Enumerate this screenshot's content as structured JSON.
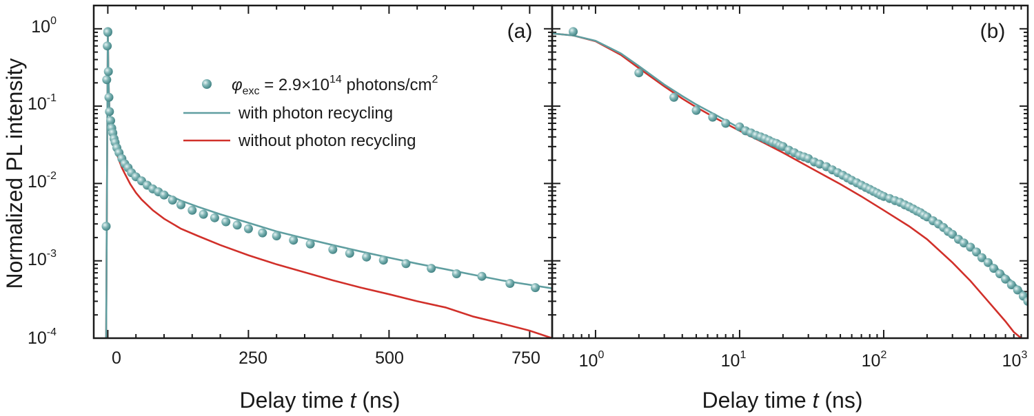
{
  "colors": {
    "teal": "#5f9ea0",
    "red": "#d1302a",
    "frame": "#1a1a1a"
  },
  "y_axis": {
    "label": "Normalized PL intensity",
    "ticks": [
      {
        "base": "10",
        "exp": "0",
        "value": 1
      },
      {
        "base": "10",
        "exp": "-1",
        "value": 0.1
      },
      {
        "base": "10",
        "exp": "-2",
        "value": 0.01
      },
      {
        "base": "10",
        "exp": "-3",
        "value": 0.001
      },
      {
        "base": "10",
        "exp": "-4",
        "value": 0.0001
      }
    ]
  },
  "legend": {
    "marker_symbol": "φ",
    "marker_sub": "exc",
    "marker_text": " = 2.9×10",
    "marker_exp": "14",
    "marker_unit": " photons/cm",
    "marker_unit_exp": "2",
    "line1": "with photon recycling",
    "line2": "without photon recycling"
  },
  "panel_a": {
    "label": "(a)",
    "xlabel_prefix": "Delay time ",
    "xlabel_var": "t",
    "xlabel_suffix": " (ns)",
    "x_ticks": [
      "0",
      "250",
      "500",
      "750"
    ]
  },
  "panel_b": {
    "label": "(b)",
    "xlabel_prefix": "Delay time ",
    "xlabel_var": "t",
    "xlabel_suffix": " (ns)",
    "x_ticks": [
      {
        "base": "10",
        "exp": "0"
      },
      {
        "base": "10",
        "exp": "1"
      },
      {
        "base": "10",
        "exp": "2"
      },
      {
        "base": "10",
        "exp": "3"
      }
    ]
  },
  "chart_data": [
    {
      "type": "line",
      "panel": "(a)",
      "xlabel": "Delay time t (ns)",
      "ylabel": "Normalized PL intensity",
      "xlim": [
        -25,
        790
      ],
      "ylim": [
        0.0001,
        2
      ],
      "yscale": "log",
      "series": [
        {
          "name": "φexc = 2.9×10^14 photons/cm^2",
          "kind": "scatter",
          "x": [
            -3,
            -2,
            -1,
            0,
            0,
            1,
            2,
            3,
            5,
            7,
            9,
            11,
            13,
            16,
            20,
            25,
            30,
            36,
            42,
            50,
            60,
            70,
            80,
            90,
            100,
            115,
            130,
            150,
            170,
            190,
            210,
            230,
            250,
            275,
            300,
            330,
            360,
            400,
            430,
            460,
            490,
            530,
            575,
            620,
            665,
            715,
            760
          ],
          "y": [
            0.0028,
            0.22,
            0.6,
            0.92,
            0.9,
            0.28,
            0.13,
            0.085,
            0.065,
            0.052,
            0.045,
            0.038,
            0.034,
            0.029,
            0.025,
            0.021,
            0.018,
            0.016,
            0.0138,
            0.0122,
            0.0108,
            0.0095,
            0.0085,
            0.0078,
            0.0071,
            0.0061,
            0.0053,
            0.0045,
            0.004,
            0.0036,
            0.0032,
            0.0029,
            0.0026,
            0.0023,
            0.0021,
            0.00185,
            0.00165,
            0.0014,
            0.00125,
            0.00112,
            0.00102,
            0.00092,
            0.0008,
            0.00068,
            0.00063,
            0.00051,
            0.00045
          ]
        },
        {
          "name": "with photon recycling",
          "kind": "line",
          "x": [
            -3,
            0,
            1,
            2,
            3,
            5,
            8,
            12,
            16,
            20,
            25,
            30,
            40,
            50,
            60,
            80,
            100,
            130,
            160,
            200,
            250,
            300,
            350,
            400,
            450,
            500,
            550,
            600,
            650,
            700,
            750,
            790
          ],
          "y": [
            0.0001,
            0.93,
            0.3,
            0.14,
            0.09,
            0.065,
            0.05,
            0.04,
            0.033,
            0.028,
            0.024,
            0.02,
            0.016,
            0.0135,
            0.0115,
            0.009,
            0.0075,
            0.006,
            0.005,
            0.004,
            0.0031,
            0.0024,
            0.00195,
            0.0016,
            0.00132,
            0.0011,
            0.00092,
            0.00078,
            0.00066,
            0.00056,
            0.00049,
            0.00044
          ]
        },
        {
          "name": "without photon recycling",
          "kind": "line",
          "x": [
            -3,
            0,
            1,
            2,
            3,
            5,
            8,
            12,
            16,
            20,
            25,
            30,
            40,
            50,
            60,
            80,
            100,
            130,
            160,
            200,
            250,
            300,
            350,
            400,
            450,
            500,
            550,
            600,
            650,
            700,
            750,
            790
          ],
          "y": [
            0.0001,
            0.93,
            0.3,
            0.14,
            0.09,
            0.06,
            0.042,
            0.031,
            0.024,
            0.02,
            0.016,
            0.0135,
            0.0098,
            0.0076,
            0.0062,
            0.0045,
            0.0035,
            0.0026,
            0.0021,
            0.0016,
            0.00118,
            0.0009,
            0.00071,
            0.00056,
            0.00045,
            0.00037,
            0.0003,
            0.00025,
            0.00019,
            0.000155,
            0.000125,
            0.0001
          ]
        }
      ]
    },
    {
      "type": "line",
      "panel": "(b)",
      "xlabel": "Delay time t (ns)",
      "ylabel": "Normalized PL intensity",
      "xlim": [
        0.5,
        1000
      ],
      "ylim": [
        0.0001,
        2
      ],
      "xscale": "log",
      "yscale": "log",
      "series": [
        {
          "name": "φexc = 2.9×10^14 photons/cm^2",
          "kind": "scatter",
          "x": [
            0.7,
            2,
            3.5,
            5,
            6.5,
            8,
            10,
            11,
            12,
            13,
            14,
            15,
            16,
            17,
            18,
            19,
            20,
            22,
            24,
            26,
            28,
            30,
            33,
            36,
            40,
            44,
            48,
            52,
            56,
            60,
            65,
            70,
            75,
            80,
            85,
            90,
            95,
            100,
            110,
            120,
            130,
            140,
            150,
            160,
            170,
            180,
            190,
            200,
            220,
            240,
            260,
            280,
            300,
            330,
            360,
            400,
            440,
            480,
            530,
            580,
            640,
            700,
            770,
            850,
            930,
            1000
          ],
          "y": [
            0.92,
            0.27,
            0.13,
            0.088,
            0.072,
            0.06,
            0.054,
            0.048,
            0.045,
            0.042,
            0.04,
            0.038,
            0.036,
            0.034,
            0.033,
            0.031,
            0.03,
            0.027,
            0.025,
            0.023,
            0.022,
            0.021,
            0.019,
            0.0178,
            0.0165,
            0.015,
            0.0138,
            0.0128,
            0.0118,
            0.011,
            0.0102,
            0.0095,
            0.0089,
            0.0084,
            0.0079,
            0.0075,
            0.0071,
            0.0068,
            0.0064,
            0.006,
            0.0057,
            0.0053,
            0.005,
            0.0047,
            0.0044,
            0.0042,
            0.0039,
            0.0037,
            0.0033,
            0.003,
            0.0027,
            0.0024,
            0.0022,
            0.0019,
            0.0017,
            0.0015,
            0.0013,
            0.0011,
            0.00095,
            0.0008,
            0.00068,
            0.00058,
            0.00049,
            0.00042,
            0.00035,
            0.0003
          ]
        },
        {
          "name": "with photon recycling",
          "kind": "line",
          "x": [
            0.5,
            0.7,
            1,
            1.5,
            2,
            3,
            4,
            5,
            7,
            10,
            15,
            20,
            30,
            40,
            50,
            70,
            100,
            130,
            160,
            200,
            300,
            400,
            500,
            700,
            1000
          ],
          "y": [
            0.87,
            0.82,
            0.7,
            0.48,
            0.33,
            0.19,
            0.135,
            0.105,
            0.075,
            0.052,
            0.037,
            0.029,
            0.02,
            0.0155,
            0.0128,
            0.0095,
            0.0068,
            0.0055,
            0.0045,
            0.0036,
            0.0022,
            0.0015,
            0.0011,
            0.00065,
            0.00035
          ]
        },
        {
          "name": "without photon recycling",
          "kind": "line",
          "x": [
            0.5,
            0.7,
            1,
            1.5,
            2,
            3,
            4,
            5,
            7,
            10,
            15,
            20,
            30,
            40,
            50,
            70,
            100,
            150,
            200,
            300,
            400,
            500,
            600,
            700,
            800,
            900
          ],
          "y": [
            0.87,
            0.82,
            0.69,
            0.46,
            0.31,
            0.18,
            0.125,
            0.097,
            0.068,
            0.048,
            0.033,
            0.025,
            0.0165,
            0.0123,
            0.0098,
            0.0068,
            0.0045,
            0.0028,
            0.0019,
            0.00095,
            0.00055,
            0.00034,
            0.00023,
            0.000165,
            0.00012,
            0.0001
          ]
        }
      ]
    }
  ]
}
